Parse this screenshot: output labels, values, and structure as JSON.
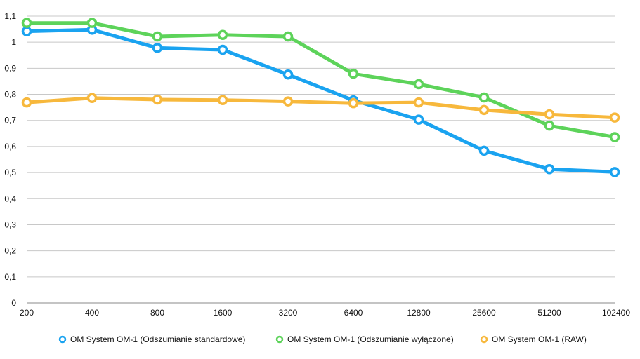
{
  "chart_data": {
    "type": "line",
    "categories": [
      "200",
      "400",
      "800",
      "1600",
      "3200",
      "6400",
      "12800",
      "25600",
      "51200",
      "102400"
    ],
    "y_ticks": [
      "0",
      "0,1",
      "0,2",
      "0,3",
      "0,4",
      "0,5",
      "0,6",
      "0,7",
      "0,8",
      "0,9",
      "1",
      "1,1"
    ],
    "ylim": [
      0,
      1.1
    ],
    "grid": true,
    "legend_position": "bottom",
    "series": [
      {
        "name": "OM System OM-1 (Odszumianie standardowe)",
        "color": "#1aa3f0",
        "values": [
          1.042,
          1.048,
          0.978,
          0.971,
          0.876,
          0.777,
          0.703,
          0.584,
          0.513,
          0.502
        ]
      },
      {
        "name": "OM System OM-1 (Odszumianie wyłączone)",
        "color": "#5dd35a",
        "values": [
          1.074,
          1.074,
          1.022,
          1.028,
          1.022,
          0.879,
          0.839,
          0.788,
          0.68,
          0.636
        ]
      },
      {
        "name": "OM System OM-1 (RAW)",
        "color": "#f7b83c",
        "values": [
          0.769,
          0.786,
          0.78,
          0.778,
          0.773,
          0.766,
          0.769,
          0.74,
          0.723,
          0.711
        ]
      }
    ]
  }
}
